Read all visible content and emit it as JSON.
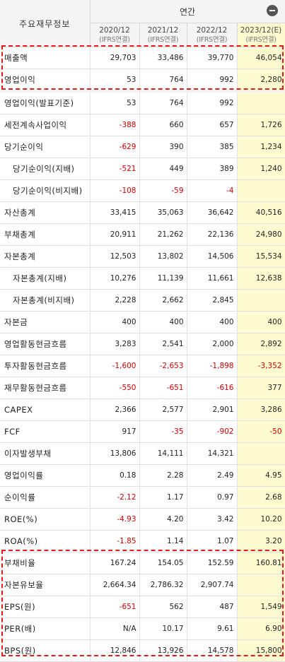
{
  "header": {
    "label": "주요재무정보",
    "annual": "연간",
    "columns": [
      {
        "year": "2020/12",
        "basis": "(IFRS연결)"
      },
      {
        "year": "2021/12",
        "basis": "(IFRS연결)"
      },
      {
        "year": "2022/12",
        "basis": "(IFRS연결)"
      },
      {
        "year": "2023/12(E)",
        "basis": "(IFRS연결)"
      }
    ]
  },
  "rows": [
    {
      "label": "매출액",
      "values": [
        "29,703",
        "33,486",
        "39,770",
        "46,054"
      ]
    },
    {
      "label": "영업이익",
      "values": [
        "53",
        "764",
        "992",
        "2,280"
      ]
    },
    {
      "label": "영업이익(발표기준)",
      "values": [
        "53",
        "764",
        "992",
        ""
      ]
    },
    {
      "label": "세전계속사업이익",
      "values": [
        "-388",
        "660",
        "657",
        "1,726"
      ]
    },
    {
      "label": "당기순이익",
      "values": [
        "-629",
        "390",
        "385",
        "1,234"
      ]
    },
    {
      "label": "당기순이익(지배)",
      "values": [
        "-521",
        "449",
        "389",
        "1,240"
      ]
    },
    {
      "label": "당기순이익(비지배)",
      "values": [
        "-108",
        "-59",
        "-4",
        ""
      ]
    },
    {
      "label": "자산총계",
      "values": [
        "33,415",
        "35,063",
        "36,642",
        "40,516"
      ]
    },
    {
      "label": "부채총계",
      "values": [
        "20,911",
        "21,262",
        "22,136",
        "24,980"
      ]
    },
    {
      "label": "자본총계",
      "values": [
        "12,503",
        "13,802",
        "14,506",
        "15,534"
      ]
    },
    {
      "label": "자본총계(지배)",
      "values": [
        "10,276",
        "11,139",
        "11,661",
        "12,638"
      ]
    },
    {
      "label": "자본총계(비지배)",
      "values": [
        "2,228",
        "2,662",
        "2,845",
        ""
      ]
    },
    {
      "label": "자본금",
      "values": [
        "400",
        "400",
        "400",
        "400"
      ]
    },
    {
      "label": "영업활동현금흐름",
      "values": [
        "3,283",
        "2,541",
        "2,000",
        "2,892"
      ]
    },
    {
      "label": "투자활동현금흐름",
      "values": [
        "-1,600",
        "-2,653",
        "-1,898",
        "-3,352"
      ]
    },
    {
      "label": "재무활동현금흐름",
      "values": [
        "-550",
        "-651",
        "-616",
        "377"
      ]
    },
    {
      "label": "CAPEX",
      "values": [
        "2,366",
        "2,577",
        "2,901",
        "3,286"
      ]
    },
    {
      "label": "FCF",
      "values": [
        "917",
        "-35",
        "-902",
        "-50"
      ]
    },
    {
      "label": "이자발생부채",
      "values": [
        "13,806",
        "14,111",
        "14,321",
        ""
      ]
    },
    {
      "label": "영업이익률",
      "values": [
        "0.18",
        "2.28",
        "2.49",
        "4.95"
      ]
    },
    {
      "label": "순이익률",
      "values": [
        "-2.12",
        "1.17",
        "0.97",
        "2.68"
      ]
    },
    {
      "label": "ROE(%)",
      "values": [
        "-4.93",
        "4.20",
        "3.42",
        "10.20"
      ]
    },
    {
      "label": "ROA(%)",
      "values": [
        "-1.85",
        "1.14",
        "1.07",
        "3.20"
      ]
    },
    {
      "label": "부채비율",
      "values": [
        "167.24",
        "154.05",
        "152.59",
        "160.81"
      ]
    },
    {
      "label": "자본유보율",
      "values": [
        "2,664.34",
        "2,786.32",
        "2,907.74",
        ""
      ]
    },
    {
      "label": "EPS(원)",
      "values": [
        "-651",
        "562",
        "487",
        "1,549"
      ]
    },
    {
      "label": "PER(배)",
      "values": [
        "N/A",
        "10.17",
        "9.61",
        "6.90"
      ]
    },
    {
      "label": "BPS(원)",
      "values": [
        "12,846",
        "13,926",
        "14,578",
        "15,800"
      ]
    }
  ],
  "colors": {
    "negative": "#d20000",
    "estimate_bg": "#fffbd0",
    "highlight": "#e31b1b"
  }
}
